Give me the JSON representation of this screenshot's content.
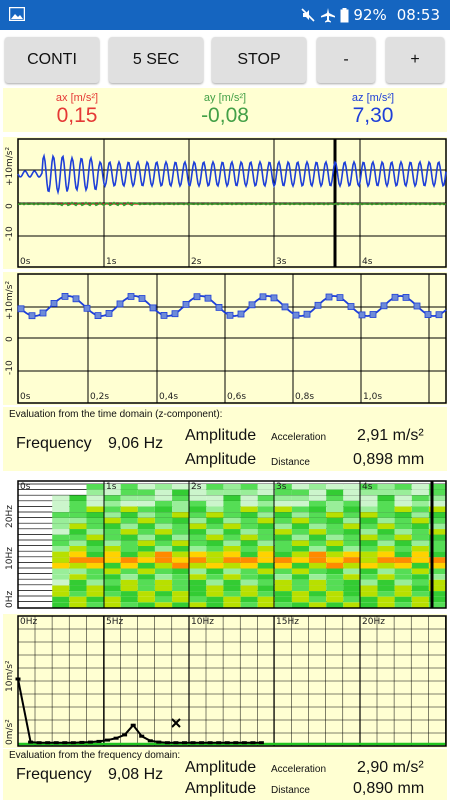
{
  "status": {
    "battery": "92%",
    "time": "08:53"
  },
  "buttons": {
    "conti": "CONTI",
    "five_sec": "5 SEC",
    "stop": "STOP",
    "minus": "-",
    "plus": "+"
  },
  "readings": {
    "ax": {
      "label": "ax [m/s²]",
      "value": "0,15",
      "color": "#e53935"
    },
    "ay": {
      "label": "ay [m/s²]",
      "value": "-0,08",
      "color": "#43a047"
    },
    "az": {
      "label": "az [m/s²]",
      "value": "7,30",
      "color": "#1e3fd8"
    }
  },
  "plot1": {
    "xticks": [
      "0s",
      "1s",
      "2s",
      "3s",
      "4s"
    ],
    "yticks": [
      "+10m/s²",
      "0",
      "-10"
    ]
  },
  "plot2": {
    "xticks": [
      "0s",
      "0,2s",
      "0,4s",
      "0,6s",
      "0,8s",
      "1,0s"
    ],
    "yticks": [
      "+10m/s²",
      "0",
      "-10"
    ]
  },
  "time_eval": {
    "title": "Evaluation from the time domain (z-component):",
    "frequency_label": "Frequency",
    "frequency_value": "9,06 Hz",
    "amplitude_label": "Amplitude",
    "acceleration_label": "Acceleration",
    "acceleration_value": "2,91 m/s²",
    "distance_label": "Distance",
    "distance_value": "0,898 mm"
  },
  "spectrogram": {
    "xticks": [
      "0s",
      "1s",
      "2s",
      "3s",
      "4s"
    ],
    "yticks": [
      "20Hz",
      "10Hz",
      "0Hz"
    ]
  },
  "spectrum": {
    "xticks": [
      "0Hz",
      "5Hz",
      "10Hz",
      "15Hz",
      "20Hz"
    ],
    "yticks": [
      "10m/s²",
      "0m/s²"
    ]
  },
  "freq_eval": {
    "title": "Evaluation from the frequency domain:",
    "frequency_label": "Frequency",
    "frequency_value": "9,08 Hz",
    "amplitude_label": "Amplitude",
    "acceleration_label": "Acceleration",
    "acceleration_value": "2,90 m/s²",
    "distance_label": "Distance",
    "distance_value": "0,890 mm"
  }
}
